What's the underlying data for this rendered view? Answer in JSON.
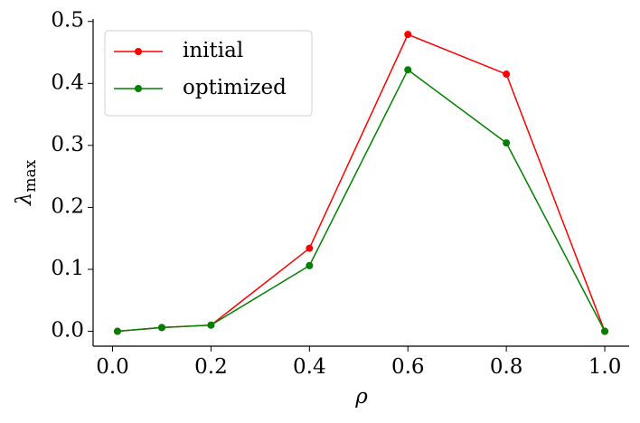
{
  "chart_data": {
    "type": "line",
    "xlabel": "ρ",
    "ylabel": "λ",
    "ylabel_subscript": "max",
    "x": [
      0.01,
      0.1,
      0.2,
      0.4,
      0.6,
      0.8,
      1.0
    ],
    "series": [
      {
        "name": "initial",
        "color": "#ff0000",
        "values": [
          0,
          0.006,
          0.01,
          0.134,
          0.479,
          0.415,
          0
        ]
      },
      {
        "name": "optimized",
        "color": "#008000",
        "values": [
          0,
          0.006,
          0.01,
          0.106,
          0.422,
          0.304,
          0
        ]
      }
    ],
    "xlim": [
      -0.0395,
      1.0495
    ],
    "xticks": [
      {
        "value": 0,
        "label": "0.0"
      },
      0.2,
      0.4,
      0.6,
      0.8,
      {
        "value": 1,
        "label": "1.0"
      }
    ],
    "ylim": [
      -0.024,
      0.504
    ],
    "yticks": [
      {
        "value": 0,
        "label": "0.0"
      },
      0.1,
      0.2,
      0.3,
      0.4,
      0.5
    ],
    "legend": "upper left",
    "grid": false
  }
}
